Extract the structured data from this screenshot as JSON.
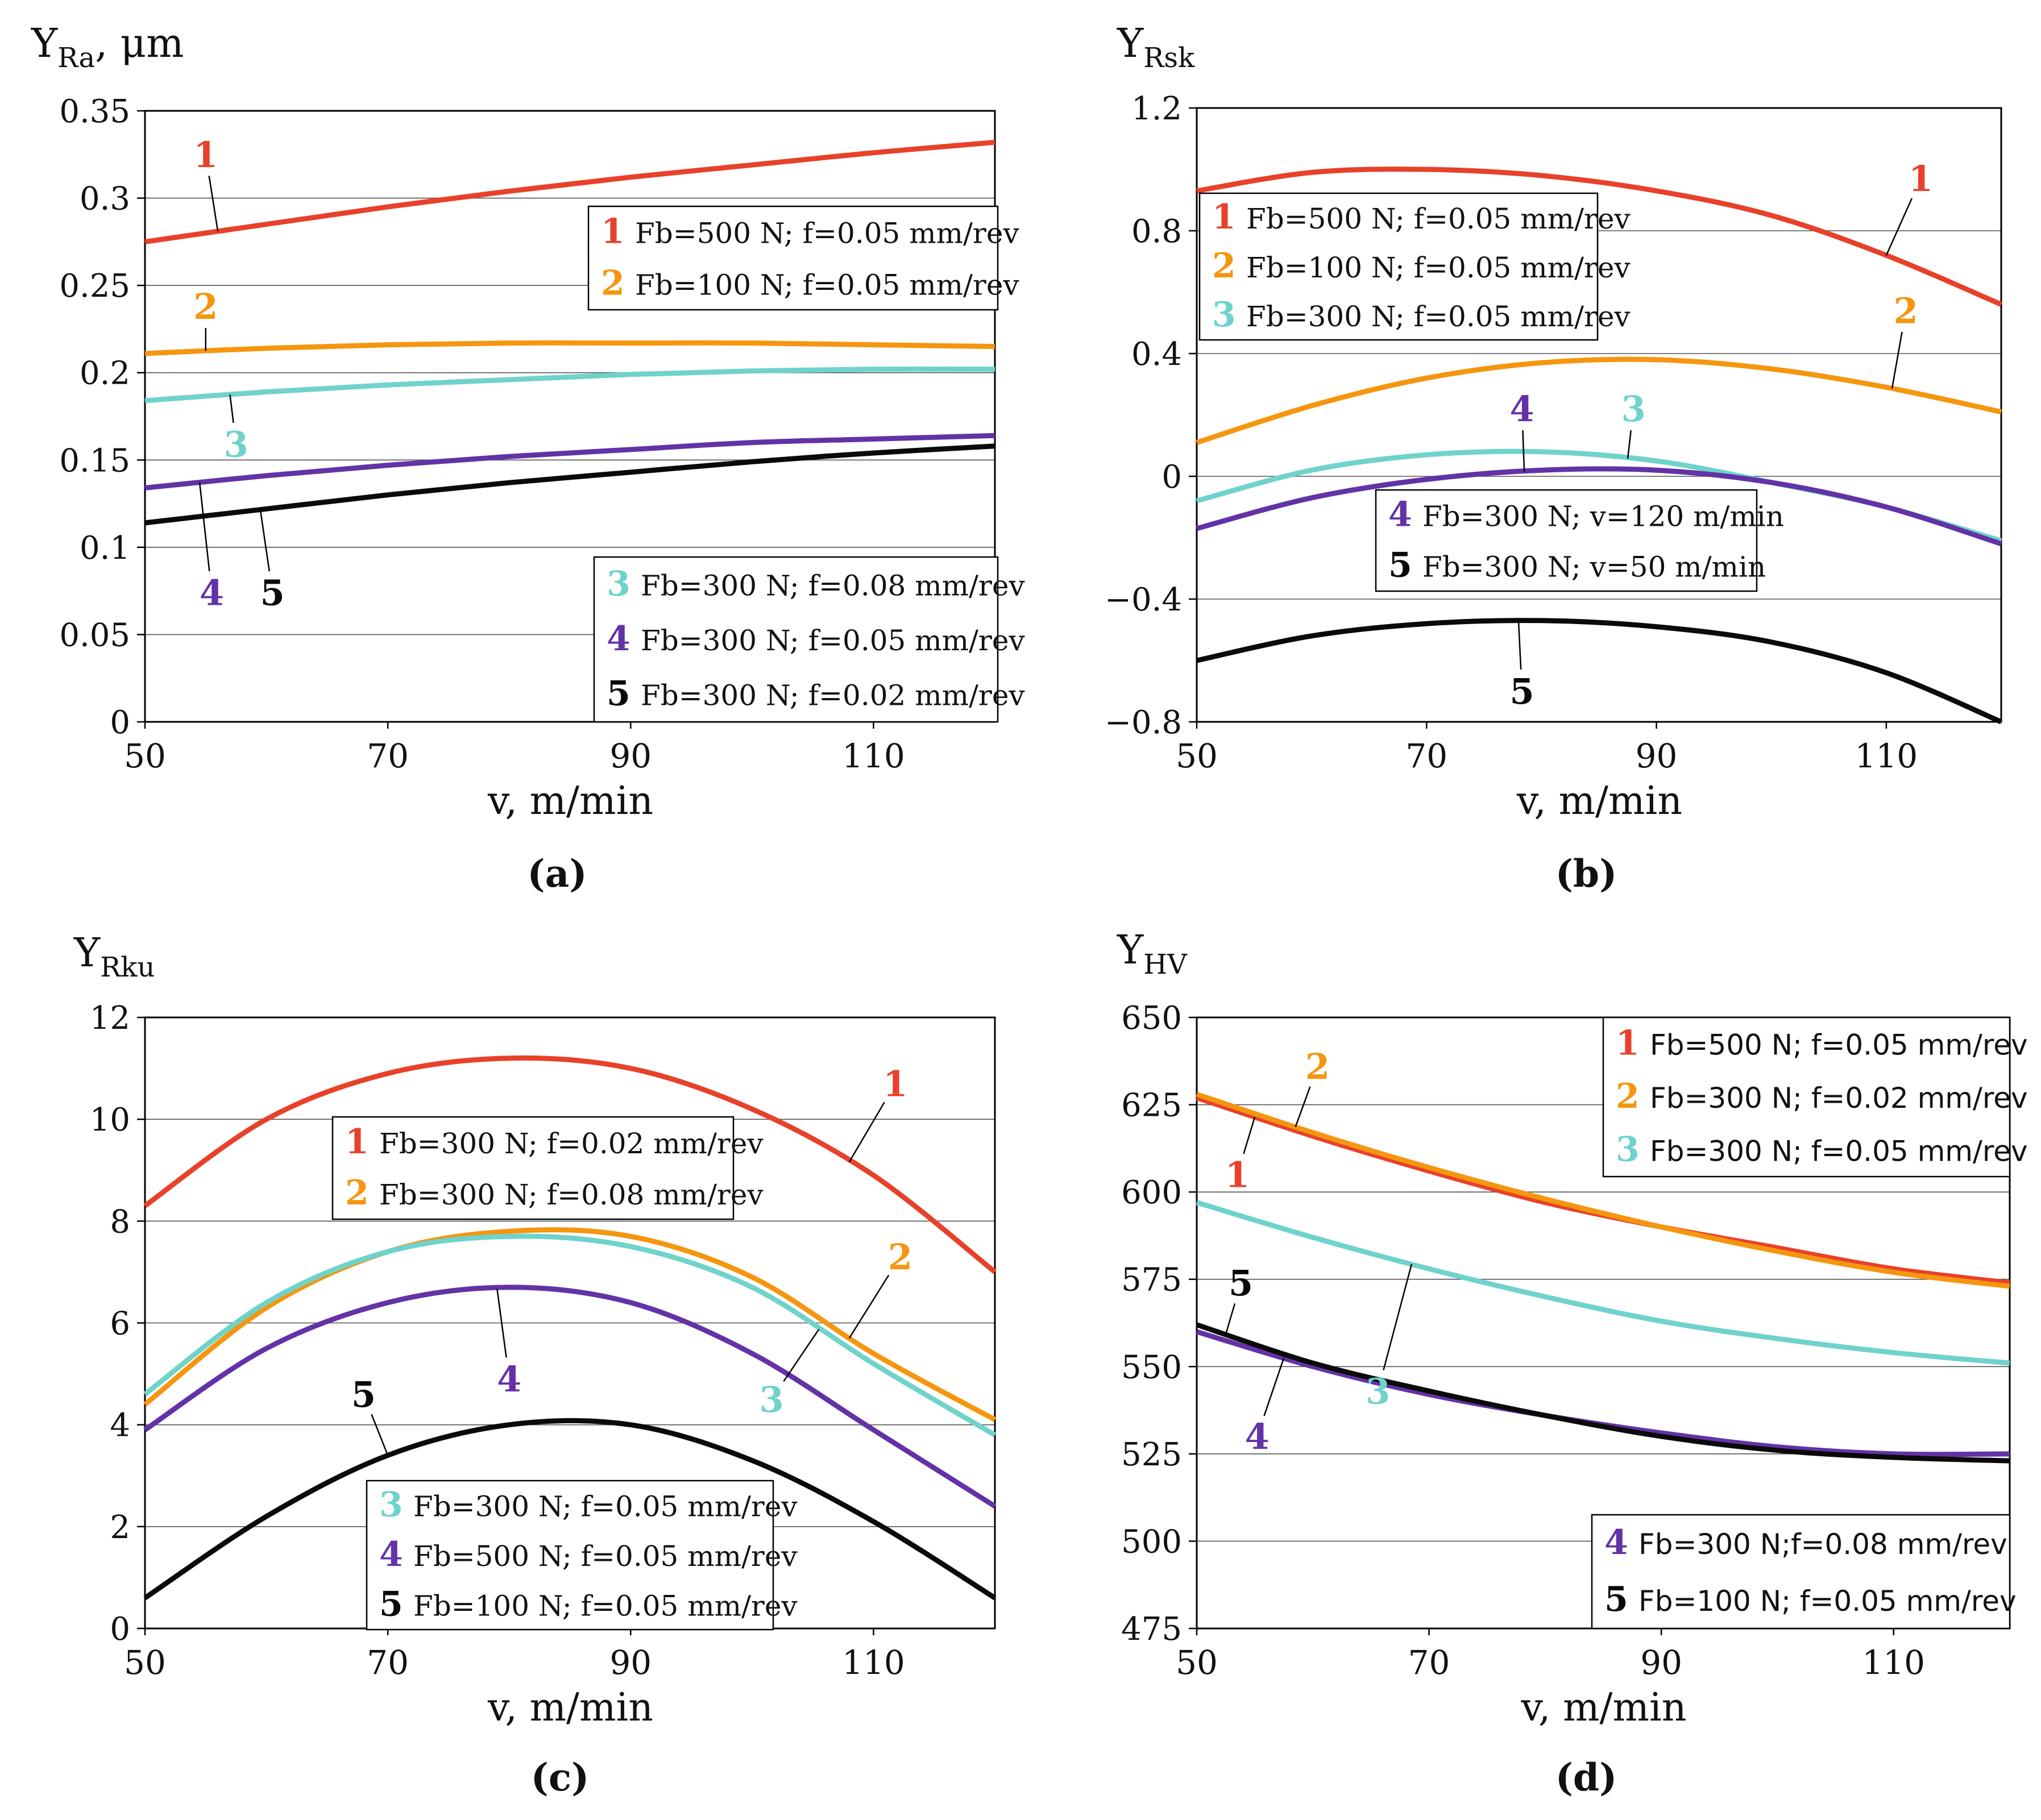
{
  "colors": {
    "s1": "#e8412a",
    "s2": "#f5960f",
    "s3": "#6fd3cb",
    "s4": "#6332a6",
    "s5": "#0a0a0a",
    "grid": "#555555"
  },
  "chart_data": [
    {
      "type": "line",
      "panel": "(a)",
      "ylabel_main": "Y",
      "ylabel_sub": "Ra",
      "ylabel_suffix": ", μm",
      "xlabel": "v, m/min",
      "xlim": [
        50,
        120
      ],
      "ylim": [
        0,
        0.35
      ],
      "xticks": [
        50,
        70,
        90,
        110
      ],
      "yticks": [
        0,
        0.05,
        0.1,
        0.15,
        0.2,
        0.25,
        0.3,
        0.35
      ],
      "ytick_labels": [
        "0",
        "0.05",
        "0.1",
        "0.15",
        "0.2",
        "0.25",
        "0.3",
        "0.35"
      ],
      "series": [
        {
          "id": "1",
          "name": "Fb=500 N; f=0.05 mm/rev",
          "x": [
            50,
            60,
            70,
            80,
            90,
            100,
            110,
            120
          ],
          "y": [
            0.275,
            0.285,
            0.295,
            0.304,
            0.312,
            0.319,
            0.326,
            0.332
          ]
        },
        {
          "id": "2",
          "name": "Fb=100 N; f=0.05 mm/rev",
          "x": [
            50,
            60,
            70,
            80,
            90,
            100,
            110,
            120
          ],
          "y": [
            0.211,
            0.214,
            0.216,
            0.217,
            0.217,
            0.217,
            0.216,
            0.215
          ]
        },
        {
          "id": "3",
          "name": "Fb=300 N; f=0.08 mm/rev",
          "x": [
            50,
            60,
            70,
            80,
            90,
            100,
            110,
            120
          ],
          "y": [
            0.184,
            0.189,
            0.193,
            0.196,
            0.199,
            0.201,
            0.202,
            0.202
          ]
        },
        {
          "id": "4",
          "name": "Fb=300 N; f=0.05 mm/rev",
          "x": [
            50,
            60,
            70,
            80,
            90,
            100,
            110,
            120
          ],
          "y": [
            0.134,
            0.141,
            0.147,
            0.152,
            0.156,
            0.16,
            0.162,
            0.164
          ]
        },
        {
          "id": "5",
          "name": "Fb=300 N; f=0.02 mm/rev",
          "x": [
            50,
            60,
            70,
            80,
            90,
            100,
            110,
            120
          ],
          "y": [
            0.114,
            0.122,
            0.13,
            0.137,
            0.143,
            0.149,
            0.154,
            0.158
          ]
        }
      ],
      "legends": [
        [
          "1",
          "2"
        ],
        [
          "3",
          "4",
          "5"
        ]
      ],
      "legend_placement": [
        "top-right",
        "bottom-right"
      ],
      "annotations": [
        {
          "label": "1",
          "x": 55,
          "y": 0.325
        },
        {
          "label": "2",
          "x": 55,
          "y": 0.238
        },
        {
          "label": "3",
          "x": 57.5,
          "y": 0.159
        },
        {
          "label": "4",
          "x": 55.5,
          "y": 0.074
        },
        {
          "label": "5",
          "x": 60.5,
          "y": 0.074
        }
      ]
    },
    {
      "type": "line",
      "panel": "(b)",
      "ylabel_main": "Y",
      "ylabel_sub": "Rsk",
      "ylabel_suffix": "",
      "xlabel": "v, m/min",
      "xlim": [
        50,
        120
      ],
      "ylim": [
        -0.8,
        1.2
      ],
      "xticks": [
        50,
        70,
        90,
        110
      ],
      "yticks": [
        -0.8,
        -0.4,
        0,
        0.4,
        0.8,
        1.2
      ],
      "ytick_labels": [
        "−0.8",
        "−0.4",
        "0",
        "0.4",
        "0.8",
        "1.2"
      ],
      "series": [
        {
          "id": "1",
          "name": "Fb=500 N; f=0.05 mm/rev",
          "x": [
            50,
            60,
            70,
            80,
            90,
            100,
            110,
            120
          ],
          "y": [
            0.93,
            0.99,
            1.0,
            0.98,
            0.93,
            0.85,
            0.72,
            0.56
          ]
        },
        {
          "id": "2",
          "name": "Fb=100 N; f=0.05 mm/rev",
          "x": [
            50,
            60,
            70,
            80,
            90,
            100,
            110,
            120
          ],
          "y": [
            0.11,
            0.23,
            0.32,
            0.37,
            0.38,
            0.35,
            0.29,
            0.21
          ]
        },
        {
          "id": "3",
          "name": "Fb=300 N; f=0.05 mm/rev",
          "x": [
            50,
            60,
            70,
            80,
            90,
            100,
            110,
            120
          ],
          "y": [
            -0.08,
            0.02,
            0.07,
            0.08,
            0.05,
            -0.02,
            -0.1,
            -0.21
          ]
        },
        {
          "id": "4",
          "name": "Fb=300 N; v=120 m/min",
          "x": [
            50,
            60,
            70,
            80,
            90,
            100,
            110,
            120
          ],
          "y": [
            -0.17,
            -0.07,
            -0.01,
            0.02,
            0.02,
            -0.02,
            -0.1,
            -0.22
          ]
        },
        {
          "id": "5",
          "name": "Fb=300 N; v=50 m/min",
          "x": [
            50,
            60,
            70,
            80,
            90,
            100,
            110,
            120
          ],
          "y": [
            -0.6,
            -0.52,
            -0.48,
            -0.47,
            -0.49,
            -0.54,
            -0.64,
            -0.8
          ]
        }
      ],
      "legends": [
        [
          "1",
          "2",
          "3"
        ],
        [
          "4",
          "5"
        ]
      ],
      "legend_placement": [
        "top-left",
        "center"
      ],
      "annotations": [
        {
          "label": "1",
          "x": 113,
          "y": 0.97
        },
        {
          "label": "2",
          "x": 111.7,
          "y": 0.54
        },
        {
          "label": "3",
          "x": 88,
          "y": 0.22
        },
        {
          "label": "4",
          "x": 78.3,
          "y": 0.22
        },
        {
          "label": "5",
          "x": 78.3,
          "y": -0.7
        }
      ]
    },
    {
      "type": "line",
      "panel": "(c)",
      "ylabel_main": "Y",
      "ylabel_sub": "Rku",
      "ylabel_suffix": "",
      "xlabel": "v, m/min",
      "xlim": [
        50,
        120
      ],
      "ylim": [
        0,
        12
      ],
      "xticks": [
        50,
        70,
        90,
        110
      ],
      "yticks": [
        0,
        2,
        4,
        6,
        8,
        10,
        12
      ],
      "ytick_labels": [
        "0",
        "2",
        "4",
        "6",
        "8",
        "10",
        "12"
      ],
      "series": [
        {
          "id": "1",
          "name": "Fb=300 N; f=0.02 mm/rev",
          "x": [
            50,
            60,
            70,
            80,
            90,
            100,
            110,
            120
          ],
          "y": [
            8.3,
            10.0,
            10.9,
            11.2,
            11.0,
            10.2,
            8.9,
            7.0
          ]
        },
        {
          "id": "2",
          "name": "Fb=300 N; f=0.08 mm/rev",
          "x": [
            50,
            60,
            70,
            80,
            90,
            100,
            110,
            120
          ],
          "y": [
            4.4,
            6.3,
            7.4,
            7.8,
            7.7,
            6.9,
            5.4,
            4.1
          ]
        },
        {
          "id": "3",
          "name": "Fb=300 N; f=0.05 mm/rev",
          "x": [
            50,
            60,
            70,
            80,
            90,
            100,
            110,
            120
          ],
          "y": [
            4.6,
            6.4,
            7.4,
            7.7,
            7.5,
            6.7,
            5.2,
            3.8
          ]
        },
        {
          "id": "4",
          "name": "Fb=500 N; f=0.05 mm/rev",
          "x": [
            50,
            60,
            70,
            80,
            90,
            100,
            110,
            120
          ],
          "y": [
            3.9,
            5.5,
            6.4,
            6.7,
            6.4,
            5.4,
            3.9,
            2.4
          ]
        },
        {
          "id": "5",
          "name": "Fb=100 N; f=0.05 mm/rev",
          "x": [
            50,
            60,
            70,
            80,
            90,
            100,
            110,
            120
          ],
          "y": [
            0.6,
            2.2,
            3.4,
            4.0,
            4.0,
            3.3,
            2.1,
            0.6
          ]
        }
      ],
      "legends": [
        [
          "1",
          "2"
        ],
        [
          "3",
          "4",
          "5"
        ]
      ],
      "legend_placement": [
        "top-center",
        "bottom-center"
      ],
      "annotations": [
        {
          "label": "1",
          "x": 111.8,
          "y": 10.7
        },
        {
          "label": "2",
          "x": 112.2,
          "y": 7.3
        },
        {
          "label": "3",
          "x": 101.6,
          "y": 4.5
        },
        {
          "label": "4",
          "x": 80,
          "y": 4.9
        },
        {
          "label": "5",
          "x": 68,
          "y": 4.6
        }
      ]
    },
    {
      "type": "line",
      "panel": "(d)",
      "ylabel_main": "Y",
      "ylabel_sub": "HV",
      "ylabel_suffix": "",
      "xlabel": "v, m/min",
      "xlim": [
        50,
        120
      ],
      "ylim": [
        475,
        650
      ],
      "xticks": [
        50,
        70,
        90,
        110
      ],
      "yticks": [
        475,
        500,
        525,
        550,
        575,
        600,
        625,
        650
      ],
      "ytick_labels": [
        "475",
        "500",
        "525",
        "550",
        "575",
        "600",
        "625",
        "650"
      ],
      "series": [
        {
          "id": "1",
          "name": "Fb=500 N; f=0.05 mm/rev",
          "x": [
            50,
            60,
            70,
            80,
            90,
            100,
            110,
            120
          ],
          "y": [
            627,
            616,
            606,
            597,
            590,
            584,
            578,
            574
          ]
        },
        {
          "id": "2",
          "name": "Fb=300 N; f=0.02 mm/rev",
          "x": [
            50,
            60,
            70,
            80,
            90,
            100,
            110,
            120
          ],
          "y": [
            628,
            617,
            607,
            598,
            590,
            583,
            577,
            573
          ]
        },
        {
          "id": "3",
          "name": "Fb=300 N; f=0.05 mm/rev",
          "x": [
            50,
            60,
            70,
            80,
            90,
            100,
            110,
            120
          ],
          "y": [
            597,
            587,
            578,
            570,
            563,
            558,
            554,
            551
          ]
        },
        {
          "id": "4",
          "name": "Fb=300 N;f=0.08 mm/rev",
          "x": [
            50,
            60,
            70,
            80,
            90,
            100,
            110,
            120
          ],
          "y": [
            560,
            550,
            542,
            536,
            531,
            527,
            525,
            525
          ]
        },
        {
          "id": "5",
          "name": "Fb=100 N; f=0.05 mm/rev",
          "x": [
            50,
            60,
            70,
            80,
            90,
            100,
            110,
            120
          ],
          "y": [
            562,
            551,
            543,
            536,
            530,
            526,
            524,
            523
          ]
        }
      ],
      "legends": [
        [
          "1",
          "2",
          "3"
        ],
        [
          "4",
          "5"
        ]
      ],
      "legend_placement": [
        "top-right",
        "bottom-right"
      ],
      "annotations": [
        {
          "label": "1",
          "x": 53.5,
          "y": 605
        },
        {
          "label": "2",
          "x": 60.4,
          "y": 636
        },
        {
          "label": "3",
          "x": 65.6,
          "y": 543
        },
        {
          "label": "4",
          "x": 55.2,
          "y": 530
        },
        {
          "label": "5",
          "x": 53.8,
          "y": 574
        }
      ]
    }
  ]
}
